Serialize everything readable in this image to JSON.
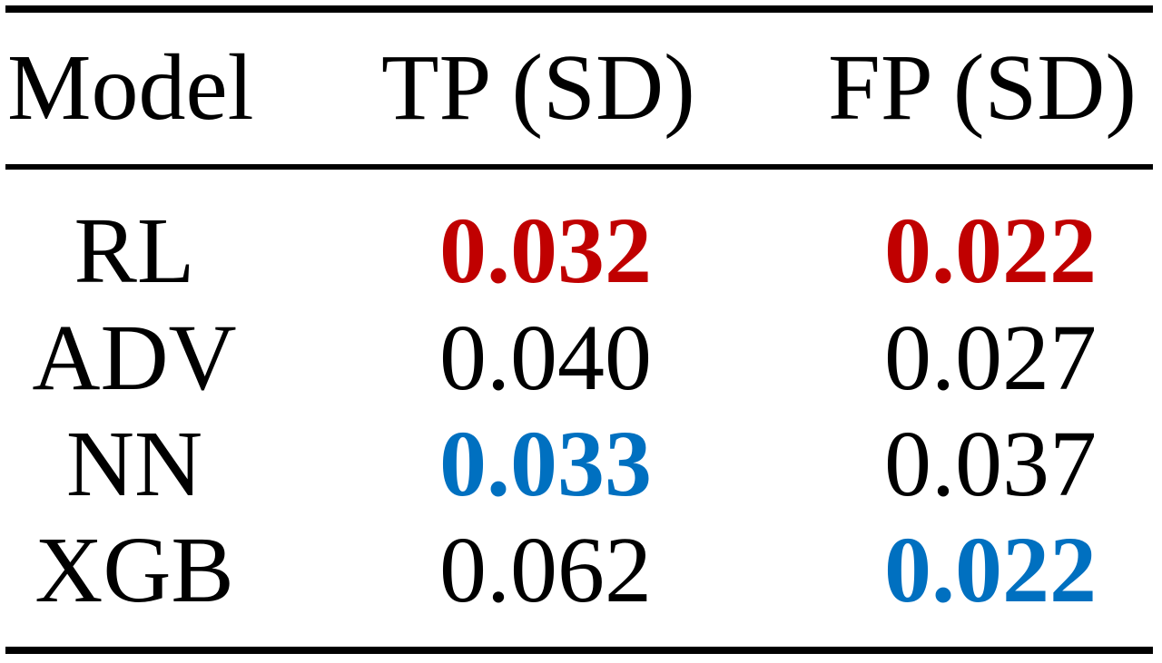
{
  "chart_data": {
    "type": "table",
    "columns": [
      "Model",
      "TP (SD)",
      "FP (SD)"
    ],
    "rows": [
      {
        "model": "RL",
        "tp": "0.032",
        "fp": "0.022",
        "tp_style": "best",
        "fp_style": "best"
      },
      {
        "model": "ADV",
        "tp": "0.040",
        "fp": "0.027",
        "tp_style": "normal",
        "fp_style": "normal"
      },
      {
        "model": "NN",
        "tp": "0.033",
        "fp": "0.037",
        "tp_style": "second",
        "fp_style": "normal"
      },
      {
        "model": "XGB",
        "tp": "0.062",
        "fp": "0.022",
        "tp_style": "normal",
        "fp_style": "second"
      }
    ]
  },
  "colors": {
    "best": "#c00000",
    "second": "#0070c0",
    "normal": "#000000"
  }
}
